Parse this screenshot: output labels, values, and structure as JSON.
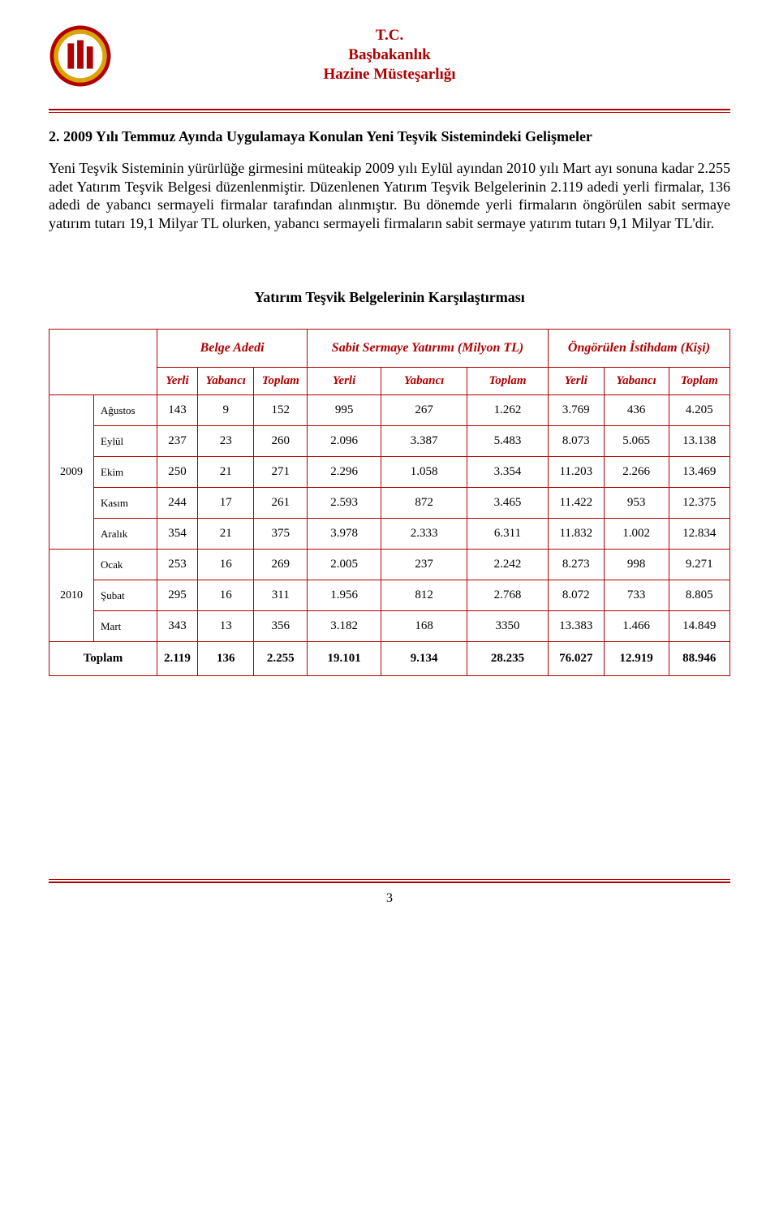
{
  "header": {
    "line1": "T.C.",
    "line2": "Başbakanlık",
    "line3": "Hazine Müsteşarlığı"
  },
  "logo": {
    "ring_outer": "#b00000",
    "ring_mid": "#d9a400",
    "ring_inner": "#ffffff",
    "bars": "#b00000"
  },
  "section_title": "2. 2009 Yılı Temmuz Ayında Uygulamaya Konulan Yeni Teşvik Sistemindeki Gelişmeler",
  "body_text": "Yeni Teşvik Sisteminin yürürlüğe girmesini müteakip 2009 yılı Eylül ayından 2010 yılı Mart ayı sonuna kadar 2.255 adet Yatırım Teşvik Belgesi düzenlenmiştir. Düzenlenen Yatırım Teşvik Belgelerinin 2.119 adedi yerli firmalar, 136 adedi de yabancı sermayeli firmalar tarafından alınmıştır. Bu dönemde yerli firmaların öngörülen sabit sermaye yatırım tutarı 19,1 Milyar TL olurken, yabancı sermayeli firmaların sabit sermaye yatırım tutarı 9,1 Milyar TL'dir.",
  "table": {
    "title": "Yatırım Teşvik Belgelerinin Karşılaştırması",
    "group_headers": [
      "Belge Adedi",
      "Sabit Sermaye Yatırımı (Milyon TL)",
      "Öngörülen İstihdam (Kişi)"
    ],
    "sub_headers": [
      "Yerli",
      "Yabancı",
      "Toplam",
      "Yerli",
      "Yabancı",
      "Toplam",
      "Yerli",
      "Yabancı",
      "Toplam"
    ],
    "blocks": [
      {
        "year": "2009",
        "rows": [
          {
            "month": "Ağustos",
            "vals": [
              "143",
              "9",
              "152",
              "995",
              "267",
              "1.262",
              "3.769",
              "436",
              "4.205"
            ]
          },
          {
            "month": "Eylül",
            "vals": [
              "237",
              "23",
              "260",
              "2.096",
              "3.387",
              "5.483",
              "8.073",
              "5.065",
              "13.138"
            ]
          },
          {
            "month": "Ekim",
            "vals": [
              "250",
              "21",
              "271",
              "2.296",
              "1.058",
              "3.354",
              "11.203",
              "2.266",
              "13.469"
            ]
          },
          {
            "month": "Kasım",
            "vals": [
              "244",
              "17",
              "261",
              "2.593",
              "872",
              "3.465",
              "11.422",
              "953",
              "12.375"
            ]
          },
          {
            "month": "Aralık",
            "vals": [
              "354",
              "21",
              "375",
              "3.978",
              "2.333",
              "6.311",
              "11.832",
              "1.002",
              "12.834"
            ]
          }
        ]
      },
      {
        "year": "2010",
        "rows": [
          {
            "month": "Ocak",
            "vals": [
              "253",
              "16",
              "269",
              "2.005",
              "237",
              "2.242",
              "8.273",
              "998",
              "9.271"
            ]
          },
          {
            "month": "Şubat",
            "vals": [
              "295",
              "16",
              "311",
              "1.956",
              "812",
              "2.768",
              "8.072",
              "733",
              "8.805"
            ]
          },
          {
            "month": "Mart",
            "vals": [
              "343",
              "13",
              "356",
              "3.182",
              "168",
              "3350",
              "13.383",
              "1.466",
              "14.849"
            ]
          }
        ]
      }
    ],
    "total": {
      "label": "Toplam",
      "vals": [
        "2.119",
        "136",
        "2.255",
        "19.101",
        "9.134",
        "28.235",
        "76.027",
        "12.919",
        "88.946"
      ]
    },
    "border_color": "#b00000",
    "header_text_color": "#b00000"
  },
  "page_number": "3"
}
